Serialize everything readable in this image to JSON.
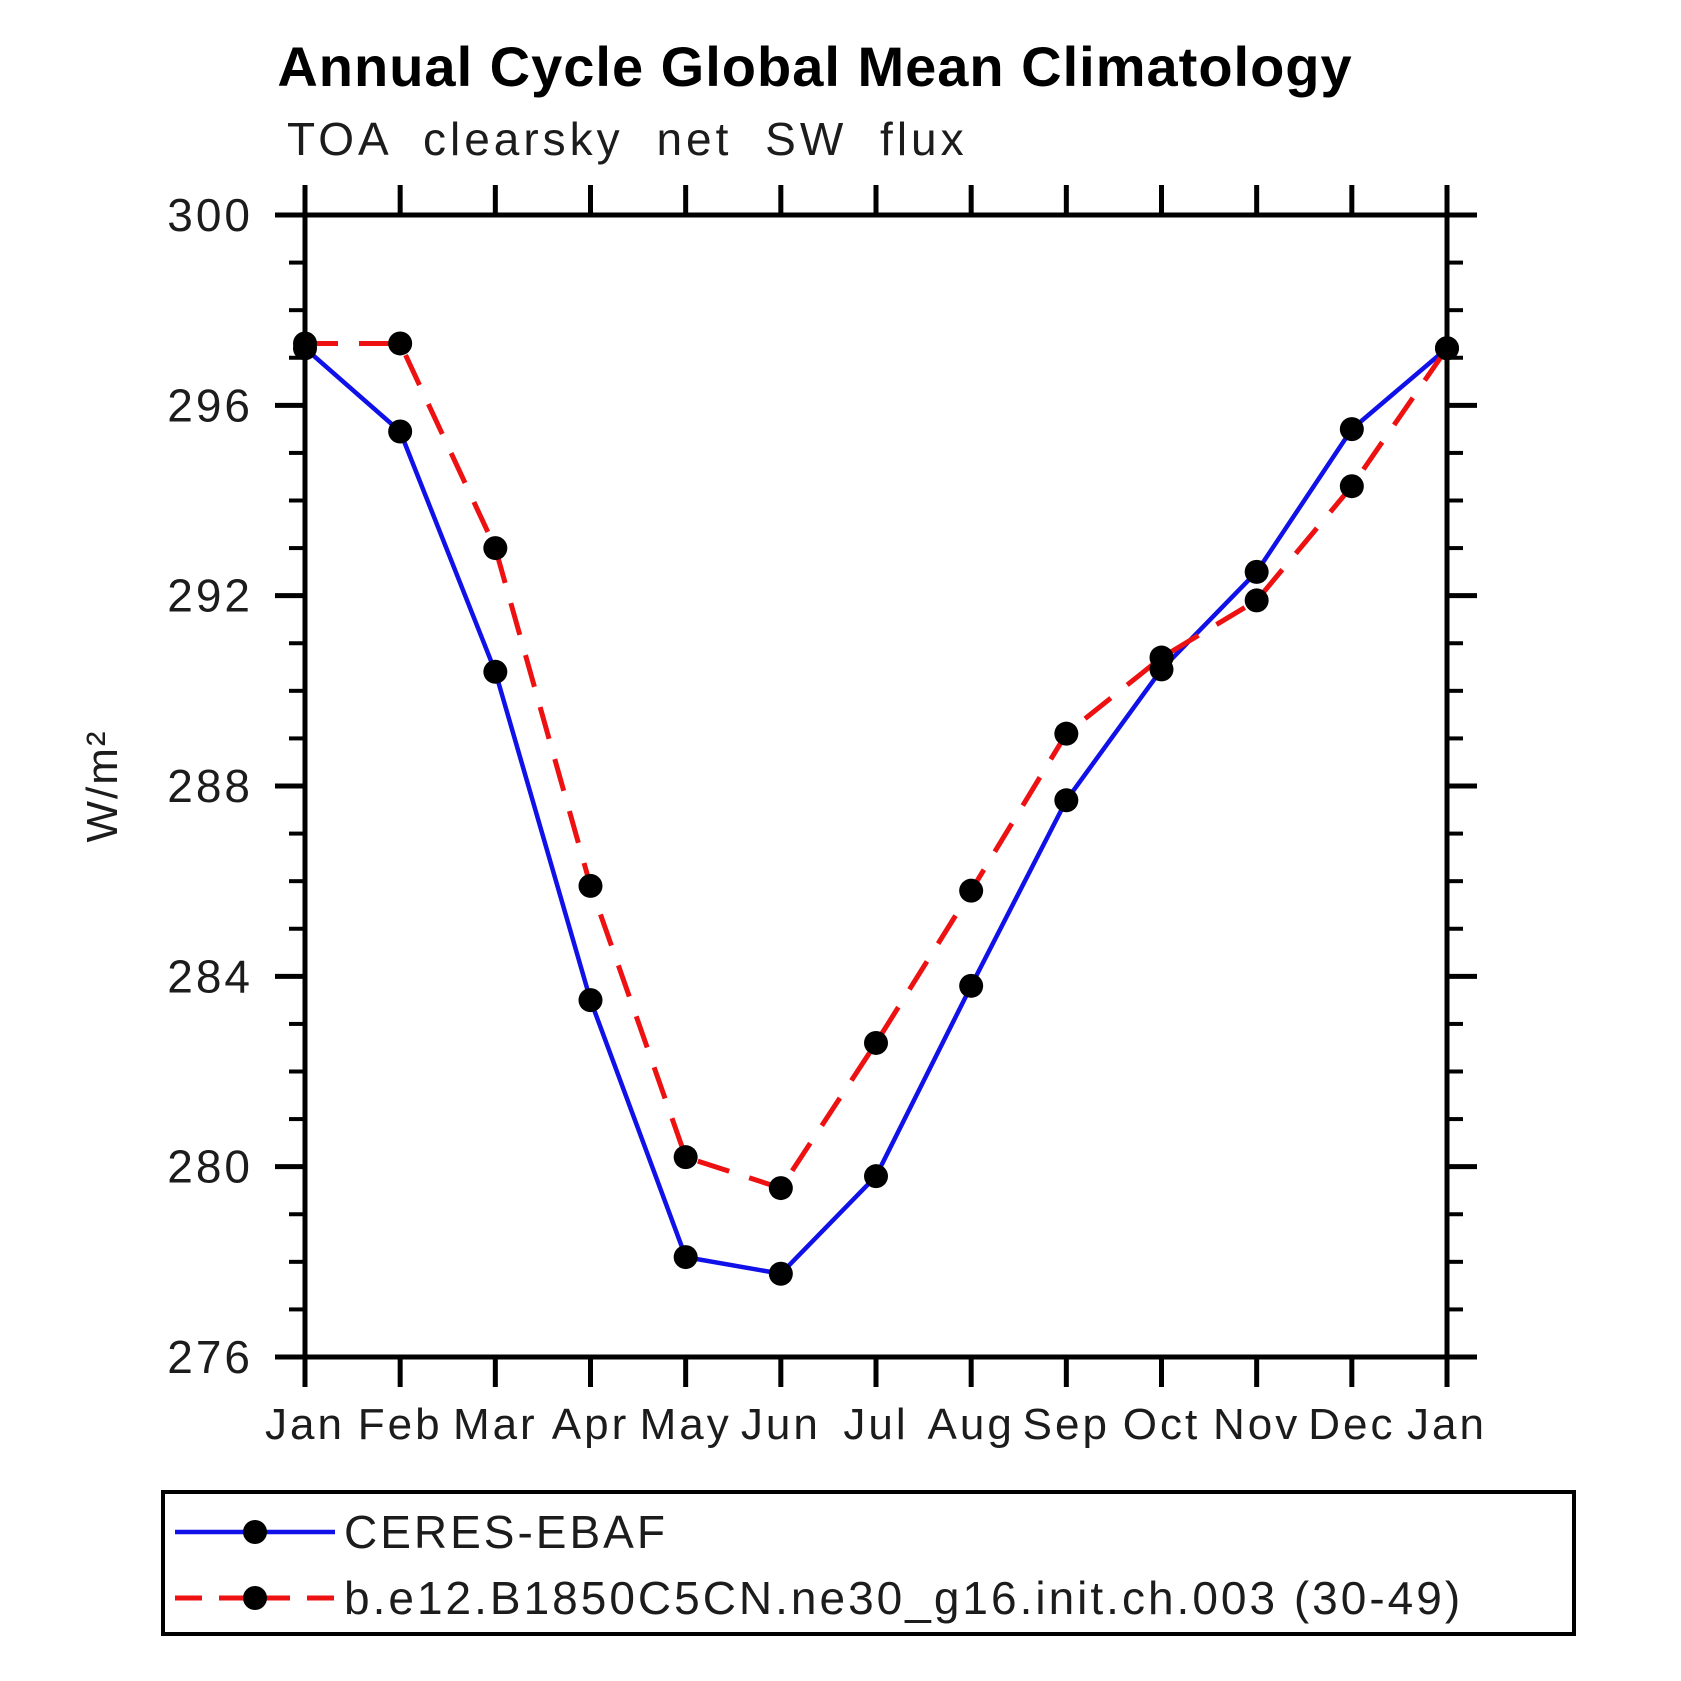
{
  "header": {
    "title": "Annual Cycle Global Mean Climatology",
    "subtitle": "TOA clearsky net SW flux"
  },
  "chart_data": {
    "type": "line",
    "title": "Annual Cycle Global Mean Climatology",
    "subtitle": "TOA clearsky net SW flux",
    "ylabel": "W/m²",
    "xlabel": "",
    "categories": [
      "Jan",
      "Feb",
      "Mar",
      "Apr",
      "May",
      "Jun",
      "Jul",
      "Aug",
      "Sep",
      "Oct",
      "Nov",
      "Dec",
      "Jan"
    ],
    "ylim": [
      276,
      300
    ],
    "ytick_major": [
      276,
      280,
      284,
      288,
      292,
      296,
      300
    ],
    "ytick_minor_step": 1,
    "grid": false,
    "legend_position": "bottom",
    "series": [
      {
        "name": "CERES-EBAF",
        "color": "#1010e8",
        "line_style": "solid",
        "marker": "black-dot",
        "values": [
          297.2,
          295.45,
          290.4,
          283.5,
          278.1,
          277.75,
          279.8,
          283.8,
          287.7,
          290.45,
          292.5,
          295.5,
          297.2
        ]
      },
      {
        "name": "b.e12.B1850C5CN.ne30_g16.init.ch.003 (30-49)",
        "color": "#ee1111",
        "line_style": "dashed",
        "marker": "black-dot",
        "values": [
          297.3,
          297.3,
          293.0,
          285.9,
          280.2,
          279.55,
          282.6,
          285.8,
          289.1,
          290.7,
          291.9,
          294.3,
          297.2
        ]
      }
    ]
  }
}
